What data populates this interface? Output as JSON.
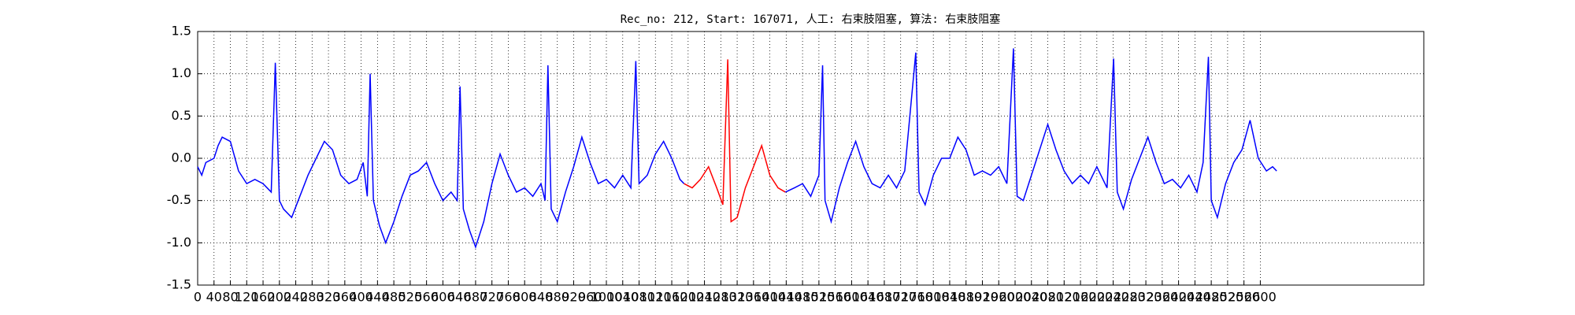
{
  "chart_data": {
    "type": "line",
    "title": "Rec_no: 212, Start: 167071, 人工: 右束肢阻塞, 算法: 右束肢阻塞",
    "xlim": [
      0,
      3000
    ],
    "ylim": [
      -1.5,
      1.5
    ],
    "xticks": [
      0,
      40,
      80,
      120,
      160,
      200,
      240,
      280,
      320,
      360,
      400,
      440,
      480,
      520,
      560,
      600,
      640,
      680,
      720,
      760,
      800,
      840,
      880,
      920,
      960,
      1000,
      1040,
      1080,
      1120,
      1160,
      1200,
      1240,
      1280,
      1320,
      1360,
      1400,
      1440,
      1480,
      1520,
      1560,
      1600,
      1640,
      1680,
      1720,
      1760,
      1800,
      1840,
      1880,
      1920,
      1960,
      2000,
      2040,
      2080,
      2120,
      2160,
      2200,
      2240,
      2280,
      2320,
      2360,
      2400,
      2440,
      2480,
      2520,
      2560,
      2600
    ],
    "yticks": [
      -1.5,
      {
        "value": -1,
        "label": "-1.0"
      },
      -0.5,
      {
        "value": 0,
        "label": "0.0"
      },
      0.5,
      {
        "value": 1,
        "label": "1.0"
      },
      1.5
    ],
    "grid": true,
    "series": [
      {
        "color": "#0000ff",
        "x": [
          0,
          10,
          20,
          40,
          50,
          60,
          80,
          100,
          120,
          140,
          160,
          170,
          180,
          190,
          200,
          210,
          230,
          250,
          270,
          290,
          310,
          330,
          350,
          370,
          390,
          405,
          415,
          422,
          430,
          445,
          460,
          480,
          500,
          520,
          540,
          560,
          580,
          600,
          620,
          635,
          642,
          650,
          665,
          680,
          700,
          720,
          740,
          760,
          780,
          800,
          820,
          840,
          850,
          857,
          865,
          880,
          900,
          920,
          940,
          960,
          980,
          1000,
          1020,
          1040,
          1060,
          1072,
          1080,
          1100,
          1120,
          1140,
          1160,
          1180,
          1190
        ],
        "values": [
          -0.1,
          -0.2,
          -0.05,
          0.0,
          0.15,
          0.25,
          0.2,
          -0.15,
          -0.3,
          -0.25,
          -0.3,
          -0.35,
          -0.4,
          1.13,
          -0.5,
          -0.6,
          -0.7,
          -0.45,
          -0.2,
          0.0,
          0.2,
          0.1,
          -0.2,
          -0.3,
          -0.25,
          -0.05,
          -0.45,
          1.0,
          -0.5,
          -0.8,
          -1.0,
          -0.75,
          -0.45,
          -0.2,
          -0.15,
          -0.05,
          -0.3,
          -0.5,
          -0.4,
          -0.5,
          0.85,
          -0.6,
          -0.85,
          -1.05,
          -0.75,
          -0.3,
          0.05,
          -0.2,
          -0.4,
          -0.35,
          -0.45,
          -0.3,
          -0.5,
          1.1,
          -0.6,
          -0.75,
          -0.4,
          -0.1,
          0.25,
          -0.05,
          -0.3,
          -0.25,
          -0.35,
          -0.2,
          -0.35,
          1.15,
          -0.3,
          -0.2,
          0.05,
          0.2,
          0.0,
          -0.25,
          -0.3
        ]
      },
      {
        "color": "#ff0000",
        "x": [
          1190,
          1210,
          1230,
          1250,
          1270,
          1285,
          1297,
          1305,
          1320,
          1340,
          1360,
          1380,
          1400,
          1420,
          1438
        ],
        "values": [
          -0.3,
          -0.35,
          -0.25,
          -0.1,
          -0.35,
          -0.55,
          1.17,
          -0.75,
          -0.7,
          -0.35,
          -0.1,
          0.15,
          -0.2,
          -0.35,
          -0.4
        ]
      },
      {
        "color": "#0000ff",
        "x": [
          1438,
          1460,
          1480,
          1500,
          1520,
          1529,
          1535,
          1550,
          1570,
          1590,
          1610,
          1630,
          1650,
          1670,
          1690,
          1710,
          1730,
          1757,
          1765,
          1780,
          1800,
          1820,
          1840,
          1860,
          1880,
          1900,
          1920,
          1940,
          1960,
          1980,
          1996,
          2005,
          2020,
          2040,
          2060,
          2080,
          2100,
          2120,
          2140,
          2160,
          2180,
          2200,
          2225,
          2241,
          2250,
          2265,
          2285,
          2305,
          2325,
          2345,
          2365,
          2385,
          2405,
          2425,
          2445,
          2460,
          2473,
          2480,
          2495,
          2515,
          2535,
          2555,
          2575,
          2595,
          2615,
          2630,
          2640
        ],
        "values": [
          -0.4,
          -0.35,
          -0.3,
          -0.45,
          -0.2,
          1.1,
          -0.5,
          -0.75,
          -0.35,
          -0.05,
          0.2,
          -0.1,
          -0.3,
          -0.35,
          -0.2,
          -0.35,
          -0.15,
          1.25,
          -0.4,
          -0.55,
          -0.2,
          0.0,
          0.0,
          0.25,
          0.1,
          -0.2,
          -0.15,
          -0.2,
          -0.1,
          -0.3,
          1.3,
          -0.45,
          -0.5,
          -0.2,
          0.1,
          0.4,
          0.1,
          -0.15,
          -0.3,
          -0.2,
          -0.3,
          -0.1,
          -0.35,
          1.18,
          -0.4,
          -0.6,
          -0.25,
          0.0,
          0.25,
          -0.05,
          -0.3,
          -0.25,
          -0.35,
          -0.2,
          -0.4,
          -0.05,
          1.2,
          -0.5,
          -0.7,
          -0.3,
          -0.05,
          0.1,
          0.45,
          0.0,
          -0.15,
          -0.1,
          -0.15
        ]
      }
    ]
  }
}
